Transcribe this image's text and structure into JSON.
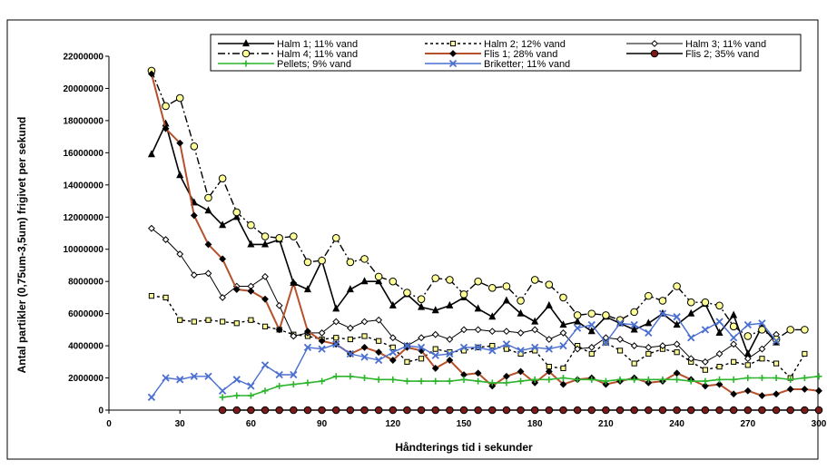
{
  "chart_data": {
    "type": "line",
    "title": "",
    "xlabel": "Håndterings tid i sekunder",
    "ylabel": "Antal partikler (0,75um-3,5um) frigivet per sekund",
    "xlim": [
      0,
      300
    ],
    "ylim": [
      0,
      22000000
    ],
    "x_ticks": [
      "0",
      "30",
      "60",
      "90",
      "120",
      "150",
      "180",
      "210",
      "240",
      "270",
      "300"
    ],
    "y_ticks": [
      "0",
      "2000000",
      "4000000",
      "6000000",
      "8000000",
      "10000000",
      "12000000",
      "14000000",
      "16000000",
      "18000000",
      "20000000",
      "22000000"
    ],
    "grid": false,
    "legend_position": "top",
    "series": [
      {
        "name": "Halm 1; 11% vand",
        "color": "#000000",
        "dash": "solid",
        "width": 1.6,
        "marker": "triangle",
        "marker_fill": "#000000",
        "x": [
          18,
          24,
          30,
          36,
          42,
          48,
          54,
          60,
          66,
          72,
          78,
          84,
          90,
          96,
          102,
          108,
          114,
          120,
          126,
          132,
          138,
          144,
          150,
          156,
          162,
          168,
          174,
          180,
          186,
          192,
          198,
          204,
          210,
          216,
          222,
          228,
          234,
          240,
          246,
          252,
          258,
          264,
          270,
          276,
          282
        ],
        "y": [
          15900000,
          17800000,
          14600000,
          12900000,
          12400000,
          11500000,
          12000000,
          10300000,
          10300000,
          10600000,
          7900000,
          7500000,
          9300000,
          6300000,
          7500000,
          8000000,
          8000000,
          6500000,
          7200000,
          6400000,
          6200000,
          6500000,
          7000000,
          6300000,
          5800000,
          6800000,
          6000000,
          5500000,
          6500000,
          5300000,
          5500000,
          4900000,
          5800000,
          5400000,
          5000000,
          5400000,
          6000000,
          5300000,
          6000000,
          6600000,
          4800000,
          5900000,
          3500000,
          5200000,
          4200000
        ]
      },
      {
        "name": "Halm 2; 12% vand",
        "color": "#000000",
        "dash": "3,3",
        "width": 1.4,
        "marker": "square",
        "marker_fill": "#ffff99",
        "x": [
          18,
          24,
          30,
          36,
          42,
          48,
          54,
          60,
          66,
          72,
          78,
          84,
          90,
          96,
          102,
          108,
          114,
          120,
          126,
          132,
          138,
          144,
          150,
          156,
          162,
          168,
          174,
          180,
          186,
          192,
          198,
          204,
          210,
          216,
          222,
          228,
          234,
          240,
          246,
          252,
          258,
          264,
          270,
          276,
          282,
          288,
          294
        ],
        "y": [
          7100000,
          7000000,
          5600000,
          5500000,
          5600000,
          5500000,
          5400000,
          5600000,
          5200000,
          5000000,
          4700000,
          4600000,
          4400000,
          4500000,
          4400000,
          4600000,
          4300000,
          3900000,
          3000000,
          3200000,
          3800000,
          3600000,
          3700000,
          3900000,
          4000000,
          3800000,
          3500000,
          3700000,
          2700000,
          2600000,
          4000000,
          3500000,
          4200000,
          3700000,
          2900000,
          3500000,
          3800000,
          3600000,
          3000000,
          2500000,
          2700000,
          3000000,
          2800000,
          3200000,
          2900000,
          2000000,
          3500000
        ]
      },
      {
        "name": "Halm 3; 11% vand",
        "color": "#000000",
        "dash": "solid",
        "width": 1,
        "marker": "diamond",
        "marker_fill": "#ffffff",
        "x": [
          18,
          24,
          30,
          36,
          42,
          48,
          54,
          60,
          66,
          72,
          78,
          84,
          90,
          96,
          102,
          108,
          114,
          120,
          126,
          132,
          138,
          144,
          150,
          156,
          162,
          168,
          174,
          180,
          186,
          192,
          198,
          204,
          210,
          216,
          222,
          228,
          234,
          240,
          246,
          252,
          258,
          264,
          270,
          276,
          282
        ],
        "y": [
          11300000,
          10600000,
          9700000,
          8400000,
          8500000,
          7000000,
          7700000,
          7700000,
          8300000,
          6500000,
          4600000,
          4800000,
          4800000,
          5500000,
          5100000,
          5500000,
          5600000,
          4500000,
          4000000,
          4500000,
          4700000,
          4400000,
          5000000,
          5000000,
          4900000,
          4900000,
          4800000,
          5000000,
          4400000,
          4800000,
          3800000,
          3900000,
          4500000,
          4400000,
          4000000,
          3900000,
          4000000,
          4100000,
          3200000,
          3000000,
          3500000,
          4100000,
          3200000,
          3800000,
          4700000
        ]
      },
      {
        "name": "Halm 4; 11% vand",
        "color": "#000000",
        "dash": "8,3,2,3",
        "width": 1.4,
        "marker": "circle",
        "marker_fill": "#ffff99",
        "x": [
          18,
          24,
          30,
          36,
          42,
          48,
          54,
          60,
          66,
          72,
          78,
          84,
          90,
          96,
          102,
          108,
          114,
          120,
          126,
          132,
          138,
          144,
          150,
          156,
          162,
          168,
          174,
          180,
          186,
          192,
          198,
          204,
          210,
          216,
          222,
          228,
          234,
          240,
          246,
          252,
          258,
          264,
          270,
          276,
          282,
          288,
          294
        ],
        "y": [
          21100000,
          18900000,
          19400000,
          16400000,
          13200000,
          14400000,
          12300000,
          11500000,
          10800000,
          10700000,
          10800000,
          9200000,
          9300000,
          10700000,
          9200000,
          9400000,
          8300000,
          8000000,
          7300000,
          6900000,
          8200000,
          8100000,
          7200000,
          8000000,
          7600000,
          7700000,
          6800000,
          8100000,
          7800000,
          7000000,
          5900000,
          6000000,
          5900000,
          5600000,
          6100000,
          7100000,
          6800000,
          7700000,
          6700000,
          6700000,
          6500000,
          5200000,
          4600000,
          5000000,
          4400000,
          5000000,
          5000000
        ]
      },
      {
        "name": "Flis 1; 28% vand",
        "color": "#b5512c",
        "dash": "solid",
        "width": 2,
        "marker": "diamond",
        "marker_fill": "#000000",
        "x": [
          18,
          24,
          30,
          36,
          42,
          48,
          54,
          60,
          66,
          72,
          78,
          84,
          90,
          96,
          102,
          108,
          114,
          120,
          126,
          132,
          138,
          144,
          150,
          156,
          162,
          168,
          174,
          180,
          186,
          192,
          198,
          204,
          210,
          216,
          222,
          228,
          234,
          240,
          246,
          252,
          258,
          264,
          270,
          276,
          282,
          288,
          294,
          300
        ],
        "y": [
          20900000,
          17500000,
          16600000,
          12100000,
          10300000,
          9400000,
          7500000,
          7400000,
          6900000,
          5000000,
          7900000,
          4900000,
          4300000,
          4100000,
          3500000,
          3900000,
          3600000,
          3100000,
          3900000,
          3700000,
          2600000,
          3100000,
          2200000,
          2300000,
          1500000,
          2100000,
          2400000,
          1700000,
          2400000,
          1600000,
          1900000,
          2000000,
          1600000,
          1800000,
          2000000,
          1700000,
          1800000,
          2300000,
          1900000,
          1500000,
          1600000,
          1000000,
          1200000,
          900000,
          1000000,
          1300000,
          1300000,
          1200000
        ]
      },
      {
        "name": "Flis 2; 35% vand",
        "color": "#000000",
        "dash": "solid",
        "width": 1.4,
        "marker": "circle",
        "marker_fill": "#7a1a1a",
        "x": [
          48,
          54,
          60,
          66,
          72,
          78,
          84,
          90,
          96,
          102,
          108,
          114,
          120,
          126,
          132,
          138,
          144,
          150,
          156,
          162,
          168,
          174,
          180,
          186,
          192,
          198,
          204,
          210,
          216,
          222,
          228,
          234,
          240,
          246,
          252,
          258,
          264,
          270,
          276,
          282,
          288,
          294,
          300
        ],
        "y": [
          0,
          0,
          0,
          0,
          0,
          0,
          0,
          0,
          0,
          0,
          0,
          0,
          0,
          0,
          0,
          0,
          0,
          0,
          0,
          0,
          0,
          0,
          0,
          0,
          0,
          0,
          0,
          0,
          0,
          0,
          0,
          0,
          0,
          0,
          0,
          0,
          0,
          0,
          0,
          0,
          0,
          0,
          0
        ]
      },
      {
        "name": "Pellets; 9% vand",
        "color": "#2db52d",
        "dash": "solid",
        "width": 1.6,
        "marker": "plus",
        "marker_fill": "#2db52d",
        "x": [
          48,
          54,
          60,
          66,
          72,
          78,
          84,
          90,
          96,
          102,
          108,
          114,
          120,
          126,
          132,
          138,
          144,
          150,
          156,
          162,
          168,
          174,
          180,
          186,
          192,
          198,
          204,
          210,
          216,
          222,
          228,
          234,
          240,
          246,
          252,
          258,
          264,
          270,
          276,
          282,
          288,
          294,
          300
        ],
        "y": [
          800000,
          900000,
          900000,
          1200000,
          1500000,
          1600000,
          1700000,
          1800000,
          2100000,
          2100000,
          2000000,
          1900000,
          1900000,
          1800000,
          1800000,
          1800000,
          1800000,
          1900000,
          1800000,
          1700000,
          1700000,
          1800000,
          1900000,
          1900000,
          2000000,
          1900000,
          1900000,
          1800000,
          1900000,
          1900000,
          1900000,
          1900000,
          1900000,
          1800000,
          1800000,
          1900000,
          1900000,
          2000000,
          2000000,
          2000000,
          1900000,
          2000000,
          2100000
        ]
      },
      {
        "name": "Briketter; 11% vand",
        "color": "#4a6fd0",
        "dash": "solid",
        "width": 1.4,
        "marker": "x",
        "marker_fill": "#4a6fd0",
        "x": [
          18,
          24,
          30,
          36,
          42,
          48,
          54,
          60,
          66,
          72,
          78,
          84,
          90,
          96,
          102,
          108,
          114,
          120,
          126,
          132,
          138,
          144,
          150,
          156,
          162,
          168,
          174,
          180,
          186,
          192,
          198,
          204,
          210,
          216,
          222,
          228,
          234,
          240,
          246,
          252,
          258,
          264,
          270,
          276,
          282
        ],
        "y": [
          800000,
          2000000,
          1900000,
          2100000,
          2100000,
          1200000,
          1900000,
          1500000,
          2800000,
          2200000,
          2200000,
          3900000,
          3800000,
          4100000,
          3500000,
          3300000,
          3100000,
          3600000,
          4000000,
          3900000,
          3400000,
          3500000,
          3900000,
          3900000,
          3700000,
          4100000,
          3700000,
          3900000,
          3800000,
          4000000,
          5100000,
          5300000,
          4200000,
          5400000,
          5300000,
          4800000,
          6000000,
          5800000,
          4500000,
          5000000,
          5500000,
          4500000,
          5300000,
          5400000,
          4300000
        ]
      }
    ]
  }
}
